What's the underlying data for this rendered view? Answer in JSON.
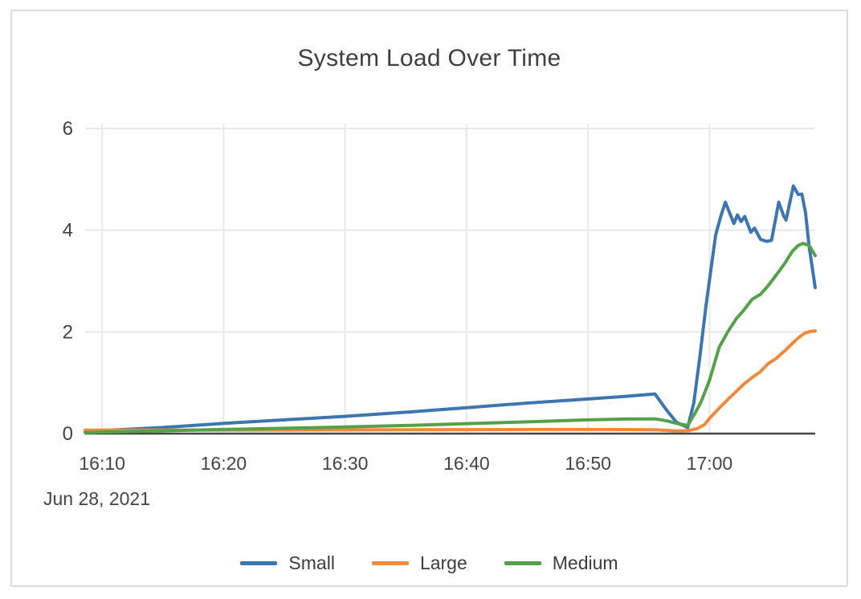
{
  "chart_data": {
    "type": "line",
    "title": "System Load Over Time",
    "date_label": "Jun 28, 2021",
    "xlabel": "",
    "ylabel": "",
    "x_unit": "minutes after 16:00 on Jun 28, 2021",
    "xlim": [
      8.6,
      68.7
    ],
    "ylim": [
      0,
      6
    ],
    "grid": true,
    "legend_position": "bottom",
    "colors": {
      "grid": "#e8e8e8",
      "axis": "#444444",
      "tick_text": "#444444",
      "title_text": "#3f3f3f"
    },
    "x_ticks": [
      {
        "t": 10,
        "label": "16:10"
      },
      {
        "t": 20,
        "label": "16:20"
      },
      {
        "t": 30,
        "label": "16:30"
      },
      {
        "t": 40,
        "label": "16:40"
      },
      {
        "t": 50,
        "label": "16:50"
      },
      {
        "t": 60,
        "label": "17:00"
      }
    ],
    "y_ticks": [
      {
        "v": 0,
        "label": "0"
      },
      {
        "v": 2,
        "label": "2"
      },
      {
        "v": 4,
        "label": "4"
      },
      {
        "v": 6,
        "label": "6"
      }
    ],
    "series": [
      {
        "name": "Small",
        "color": "#3d76ae",
        "points": [
          [
            8.6,
            0.03
          ],
          [
            10,
            0.06
          ],
          [
            15,
            0.12
          ],
          [
            20,
            0.2
          ],
          [
            25,
            0.27
          ],
          [
            30,
            0.34
          ],
          [
            35,
            0.42
          ],
          [
            40,
            0.51
          ],
          [
            45,
            0.6
          ],
          [
            50,
            0.68
          ],
          [
            53,
            0.73
          ],
          [
            55.5,
            0.78
          ],
          [
            56.5,
            0.45
          ],
          [
            57.3,
            0.22
          ],
          [
            58.2,
            0.12
          ],
          [
            58.7,
            0.6
          ],
          [
            59.2,
            1.5
          ],
          [
            59.7,
            2.5
          ],
          [
            60.1,
            3.2
          ],
          [
            60.5,
            3.9
          ],
          [
            60.9,
            4.25
          ],
          [
            61.3,
            4.55
          ],
          [
            62.0,
            4.13
          ],
          [
            62.3,
            4.3
          ],
          [
            62.6,
            4.17
          ],
          [
            62.9,
            4.27
          ],
          [
            63.4,
            3.96
          ],
          [
            63.7,
            4.04
          ],
          [
            64.2,
            3.82
          ],
          [
            64.7,
            3.78
          ],
          [
            65.1,
            3.8
          ],
          [
            65.7,
            4.55
          ],
          [
            66.1,
            4.28
          ],
          [
            66.3,
            4.2
          ],
          [
            66.9,
            4.87
          ],
          [
            67.3,
            4.7
          ],
          [
            67.6,
            4.71
          ],
          [
            67.9,
            4.35
          ],
          [
            68.2,
            3.68
          ],
          [
            68.7,
            2.87
          ]
        ]
      },
      {
        "name": "Large",
        "color": "#ef8a3c",
        "points": [
          [
            8.6,
            0.07
          ],
          [
            15,
            0.07
          ],
          [
            25,
            0.07
          ],
          [
            35,
            0.075
          ],
          [
            45,
            0.08
          ],
          [
            52,
            0.08
          ],
          [
            55.5,
            0.075
          ],
          [
            57.3,
            0.05
          ],
          [
            58.3,
            0.06
          ],
          [
            59,
            0.1
          ],
          [
            59.6,
            0.18
          ],
          [
            60,
            0.3
          ],
          [
            60.8,
            0.5
          ],
          [
            61.5,
            0.67
          ],
          [
            62.2,
            0.83
          ],
          [
            62.8,
            0.97
          ],
          [
            63.5,
            1.1
          ],
          [
            64.2,
            1.22
          ],
          [
            64.8,
            1.37
          ],
          [
            65.5,
            1.48
          ],
          [
            66.2,
            1.63
          ],
          [
            66.8,
            1.77
          ],
          [
            67.3,
            1.88
          ],
          [
            67.8,
            1.97
          ],
          [
            68.3,
            2.01
          ],
          [
            68.7,
            2.02
          ]
        ]
      },
      {
        "name": "Medium",
        "color": "#54a14a",
        "points": [
          [
            8.6,
            0.02
          ],
          [
            10,
            0.03
          ],
          [
            15,
            0.055
          ],
          [
            20,
            0.08
          ],
          [
            25,
            0.105
          ],
          [
            30,
            0.13
          ],
          [
            35,
            0.16
          ],
          [
            40,
            0.195
          ],
          [
            45,
            0.23
          ],
          [
            50,
            0.27
          ],
          [
            53,
            0.285
          ],
          [
            55.5,
            0.29
          ],
          [
            56.5,
            0.25
          ],
          [
            57.3,
            0.2
          ],
          [
            58.2,
            0.16
          ],
          [
            58.8,
            0.4
          ],
          [
            59.3,
            0.62
          ],
          [
            60,
            1.05
          ],
          [
            60.8,
            1.7
          ],
          [
            61.5,
            2.0
          ],
          [
            62.2,
            2.26
          ],
          [
            62.8,
            2.42
          ],
          [
            63.5,
            2.64
          ],
          [
            64.2,
            2.74
          ],
          [
            64.8,
            2.9
          ],
          [
            65.5,
            3.12
          ],
          [
            66.2,
            3.35
          ],
          [
            66.8,
            3.58
          ],
          [
            67.3,
            3.7
          ],
          [
            67.7,
            3.74
          ],
          [
            68.2,
            3.7
          ],
          [
            68.7,
            3.5
          ]
        ]
      }
    ],
    "legend": [
      "Small",
      "Large",
      "Medium"
    ]
  }
}
